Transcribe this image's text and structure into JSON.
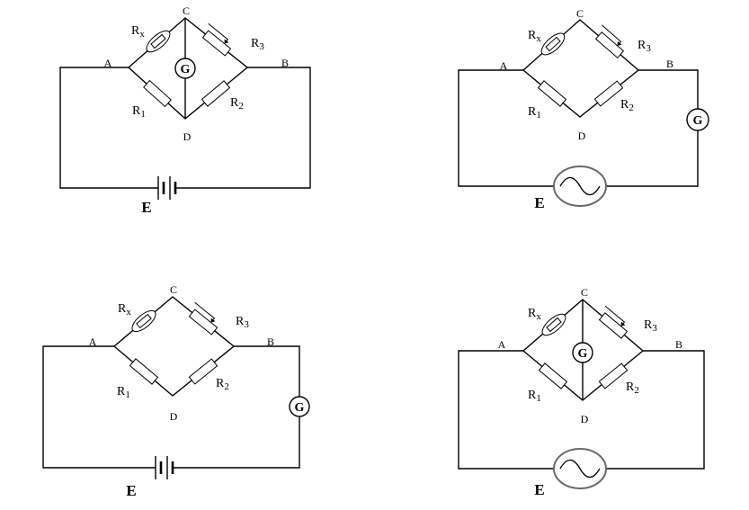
{
  "colors": {
    "ink": "#000000",
    "background": "#ffffff"
  },
  "circuits": [
    {
      "nodes": {
        "a": "A",
        "b": "B",
        "c": "C",
        "d": "D"
      },
      "rx": {
        "base": "R",
        "sub": "x"
      },
      "r3": {
        "base": "R",
        "sub": "3"
      },
      "r1": {
        "base": "R",
        "sub": "1"
      },
      "r2": {
        "base": "R",
        "sub": "2"
      },
      "meter": {
        "label": "G",
        "icon": "galvanometer-icon"
      },
      "source": {
        "label": "E",
        "icon": "battery-icon"
      }
    },
    {
      "nodes": {
        "a": "A",
        "b": "B",
        "c": "C",
        "d": "D"
      },
      "rx": {
        "base": "R",
        "sub": "x"
      },
      "r3": {
        "base": "R",
        "sub": "3"
      },
      "r1": {
        "base": "R",
        "sub": "1"
      },
      "r2": {
        "base": "R",
        "sub": "2"
      },
      "meter": {
        "label": "G",
        "icon": "galvanometer-icon"
      },
      "source": {
        "label": "E",
        "icon": "ac-source-icon"
      }
    },
    {
      "nodes": {
        "a": "A",
        "b": "B",
        "c": "C",
        "d": "D"
      },
      "rx": {
        "base": "R",
        "sub": "x"
      },
      "r3": {
        "base": "R",
        "sub": "3"
      },
      "r1": {
        "base": "R",
        "sub": "1"
      },
      "r2": {
        "base": "R",
        "sub": "2"
      },
      "meter": {
        "label": "G",
        "icon": "galvanometer-icon"
      },
      "source": {
        "label": "E",
        "icon": "battery-icon"
      }
    },
    {
      "nodes": {
        "a": "A",
        "b": "B",
        "c": "C",
        "d": "D"
      },
      "rx": {
        "base": "R",
        "sub": "x"
      },
      "r3": {
        "base": "R",
        "sub": "3"
      },
      "r1": {
        "base": "R",
        "sub": "1"
      },
      "r2": {
        "base": "R",
        "sub": "2"
      },
      "meter": {
        "label": "G",
        "icon": "galvanometer-icon"
      },
      "source": {
        "label": "E",
        "icon": "ac-source-icon"
      }
    }
  ]
}
